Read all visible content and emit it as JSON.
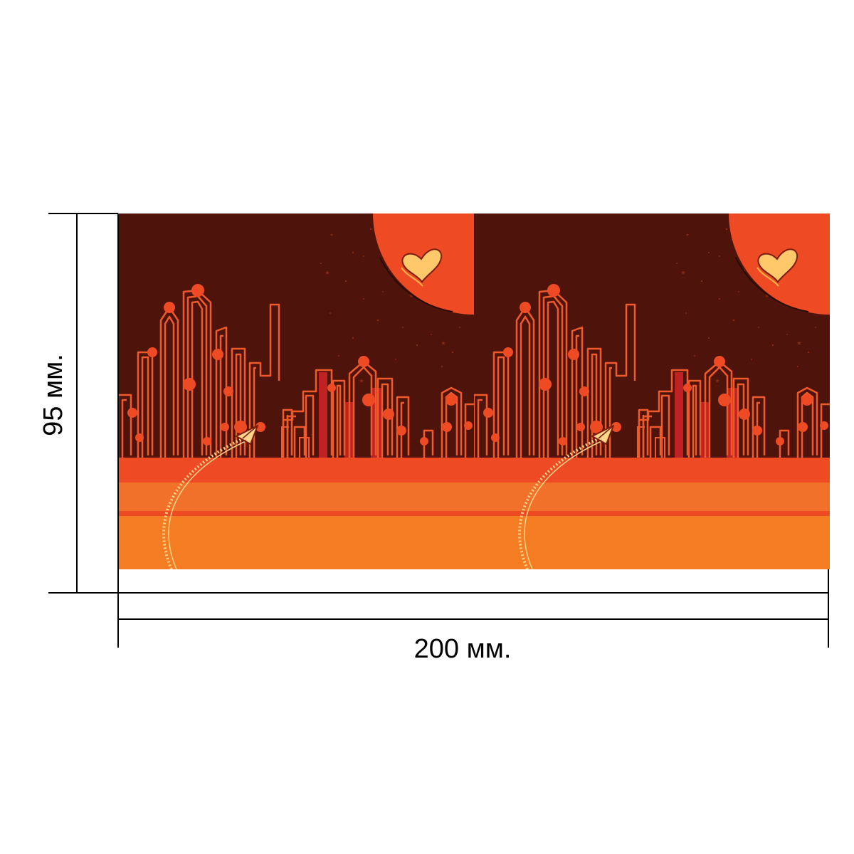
{
  "dimensions": {
    "width_label": "200 мм.",
    "height_label": "95 мм."
  },
  "colors": {
    "night_sky": "#4e140b",
    "sun": "#ee4b25",
    "heart": "#ffc96b",
    "skyline_stroke": "#f05a2a",
    "skyline_fill": "#c02224",
    "ground_top": "#ee4b25",
    "ground_mid": "#f2712a",
    "ground_bottom": "#f47c23",
    "plane": "#ffd58a",
    "dimension_line": "#000000"
  },
  "icons": [
    "heart-icon",
    "paper-plane-icon"
  ]
}
